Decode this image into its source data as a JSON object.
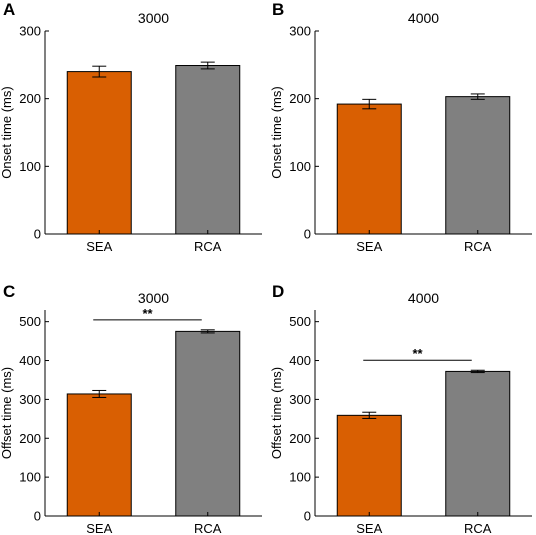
{
  "chart_data": [
    {
      "panel": "A",
      "type": "bar",
      "title": "3000",
      "categories": [
        "SEA",
        "RCA"
      ],
      "values": [
        240,
        249
      ],
      "errors": [
        8,
        5
      ],
      "colors": [
        "#D95F02",
        "#808080"
      ],
      "ylabel": "Onset time (ms)",
      "ylim": [
        0,
        300
      ],
      "yticks": [
        0,
        100,
        200,
        300
      ],
      "significance": ""
    },
    {
      "panel": "B",
      "type": "bar",
      "title": "4000",
      "categories": [
        "SEA",
        "RCA"
      ],
      "values": [
        192,
        203
      ],
      "errors": [
        7,
        4
      ],
      "colors": [
        "#D95F02",
        "#808080"
      ],
      "ylabel": "Onset time (ms)",
      "ylim": [
        0,
        300
      ],
      "yticks": [
        0,
        100,
        200,
        300
      ],
      "significance": ""
    },
    {
      "panel": "C",
      "type": "bar",
      "title": "3000",
      "categories": [
        "SEA",
        "RCA"
      ],
      "values": [
        314,
        475
      ],
      "errors": [
        9,
        4
      ],
      "colors": [
        "#D95F02",
        "#808080"
      ],
      "ylabel": "Offset time (ms)",
      "ylim": [
        0,
        530
      ],
      "yticks": [
        0,
        100,
        200,
        300,
        400,
        500
      ],
      "significance": "**"
    },
    {
      "panel": "D",
      "type": "bar",
      "title": "4000",
      "categories": [
        "SEA",
        "RCA"
      ],
      "values": [
        259,
        372
      ],
      "errors": [
        8,
        3
      ],
      "colors": [
        "#D95F02",
        "#808080"
      ],
      "ylabel": "Offset time (ms)",
      "ylim": [
        0,
        530
      ],
      "yticks": [
        0,
        100,
        200,
        300,
        400,
        500
      ],
      "significance": "**"
    }
  ]
}
